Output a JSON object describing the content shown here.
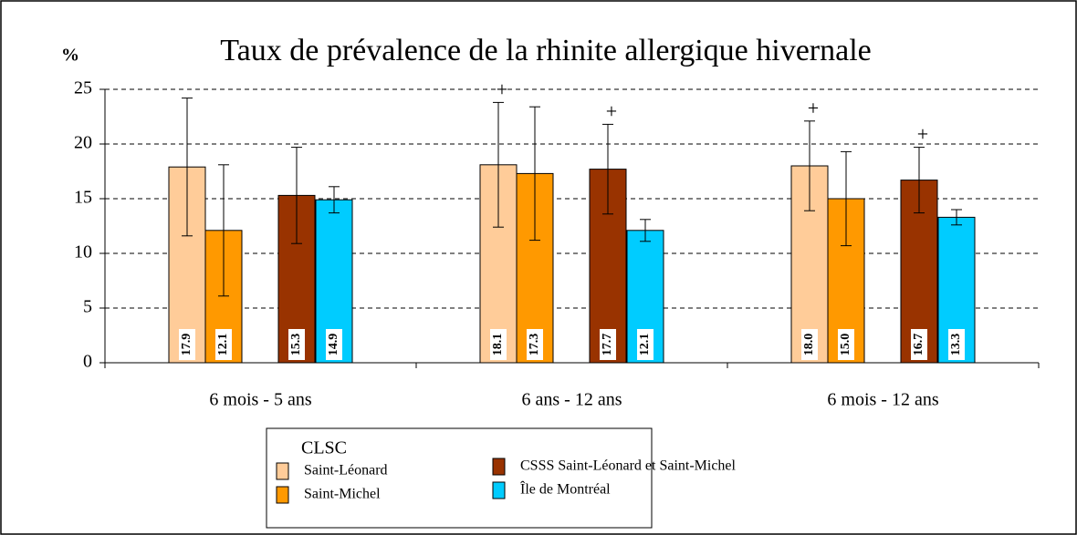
{
  "chart_data": {
    "type": "bar",
    "title": "Taux de prévalence de la rhinite allergique hivernale",
    "y_label": "%",
    "categories": [
      "6 mois - 5 ans",
      "6 ans - 12 ans",
      "6 mois - 12 ans"
    ],
    "legend_title": "CLSC",
    "series": [
      {
        "name": "Saint-Léonard",
        "color": "#FFCC99",
        "values": [
          17.9,
          18.1,
          18.0
        ],
        "value_labels": [
          "17.9",
          "18.1",
          "18.0"
        ],
        "errors": [
          6.3,
          5.7,
          4.1
        ],
        "significance": [
          null,
          "+",
          "+"
        ]
      },
      {
        "name": "Saint-Michel",
        "color": "#FF9900",
        "values": [
          12.1,
          17.3,
          15.0
        ],
        "value_labels": [
          "12.1",
          "17.3",
          "15.0"
        ],
        "errors": [
          6.0,
          6.1,
          4.3
        ],
        "significance": [
          null,
          null,
          null
        ]
      },
      {
        "name": "CSSS Saint-Léonard et Saint-Michel",
        "color": "#993300",
        "values": [
          15.3,
          17.7,
          16.7
        ],
        "value_labels": [
          "15.3",
          "17.7",
          "16.7"
        ],
        "errors": [
          4.4,
          4.1,
          3.0
        ],
        "significance": [
          null,
          "+",
          "+"
        ]
      },
      {
        "name": "Île de Montréal",
        "color": "#00CCFF",
        "values": [
          14.9,
          12.1,
          13.3
        ],
        "value_labels": [
          "14.9",
          "12.1",
          "13.3"
        ],
        "errors": [
          1.2,
          1.0,
          0.7
        ],
        "significance": [
          null,
          null,
          null
        ]
      }
    ],
    "ylim": [
      0,
      25
    ],
    "yticks": [
      0,
      5,
      10,
      15,
      20,
      25
    ],
    "grid": true
  }
}
